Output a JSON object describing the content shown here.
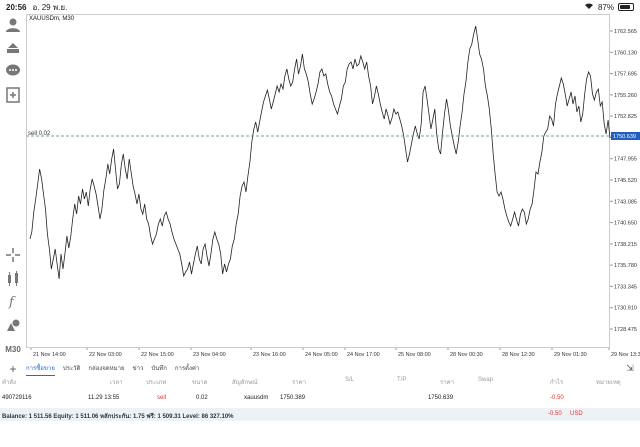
{
  "status": {
    "time": "20:56",
    "date": "อ. 29 พ.ย.",
    "battery": "87%"
  },
  "chart": {
    "symbol_label": "XAUUSDm, M30",
    "position_label": "sell 0.02",
    "position_price": "1750.639",
    "price_ticks": [
      "1762.565",
      "1760.130",
      "1757.695",
      "1755.260",
      "1752.825",
      "1750.390",
      "1747.955",
      "1745.520",
      "1743.085",
      "1740.650",
      "1738.215",
      "1735.780",
      "1733.345",
      "1730.910",
      "1728.475"
    ],
    "time_ticks": [
      "21 Nov 14:00",
      "22 Nov 03:00",
      "22 Nov 15:00",
      "23 Nov 04:00",
      "23 Nov 16:00",
      "24 Nov 05:00",
      "24 Nov 17:00",
      "25 Nov 08:00",
      "28 Nov 00:30",
      "28 Nov 12:30",
      "29 Nov 01:30",
      "29 Nov 13:30"
    ],
    "line_color": "#222222",
    "position_line_color": "#6aa6a0",
    "price_tag_bg": "#1f5fbf"
  },
  "toolbar": {
    "icons": [
      "person-icon",
      "trade-icon",
      "chat-icon",
      "new-chart-icon",
      "crosshair-icon",
      "indicators-icon",
      "function-icon",
      "objects-icon"
    ],
    "timeframe": "M30"
  },
  "tabs": [
    "การซื้อขาย",
    "ประวัติ",
    "กล่องจดหมาย",
    "ข่าว",
    "บันทึก",
    "การตั้งค่า"
  ],
  "table": {
    "headers": [
      "คำสั่ง",
      "เวลา",
      "ประเภท",
      "ขนาด",
      "สัญลักษณ์",
      "ราคา",
      "S/L",
      "T/P",
      "ราคา",
      "Swap",
      "กำไร",
      "หมายเหตุ"
    ],
    "row": {
      "order": "490729116",
      "time": "11.29 13:55",
      "type": "sell",
      "volume": "0.02",
      "symbol": "xauusdm",
      "price_open": "1750.389",
      "price_current": "1750.639",
      "profit": "-0.50"
    }
  },
  "balance": {
    "text": "Balance: 1 511.56 Equity: 1 511.06 หลักประกัน: 1.75 ฟรี: 1 509.31 Level: 86 327.10%",
    "profit": "-0.50",
    "currency": "USD"
  }
}
